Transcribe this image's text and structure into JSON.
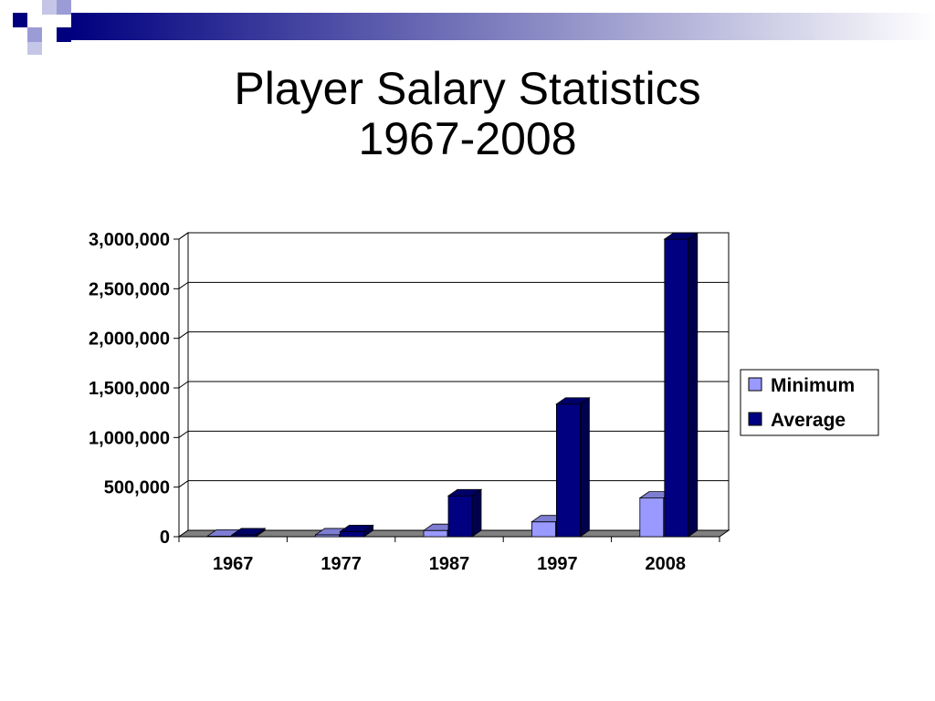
{
  "slide": {
    "title_line1": "Player Salary Statistics",
    "title_line2": "1967-2008"
  },
  "colors": {
    "minimum": "#9999ff",
    "average": "#000080",
    "header_dark": "#00007f",
    "header_light": "#9b9bd6"
  },
  "chart_data": {
    "type": "bar",
    "style": "3d-clustered-column",
    "title": "",
    "xlabel": "",
    "ylabel": "",
    "categories": [
      "1967",
      "1977",
      "1987",
      "1997",
      "2008"
    ],
    "series": [
      {
        "name": "Minimum",
        "values": [
          6000,
          19000,
          62500,
          150000,
          390000
        ]
      },
      {
        "name": "Average",
        "values": [
          19000,
          52000,
          412000,
          1337000,
          3000000
        ]
      }
    ],
    "ylim": [
      0,
      3000000
    ],
    "yticks": [
      "0",
      "500,000",
      "1,000,000",
      "1,500,000",
      "2,000,000",
      "2,500,000",
      "3,000,000"
    ],
    "grid": true,
    "legend": "right"
  }
}
